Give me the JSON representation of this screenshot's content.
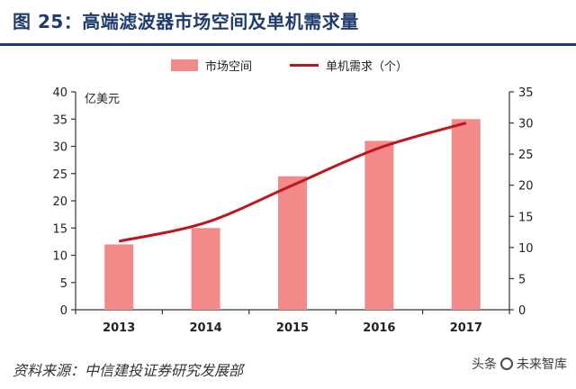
{
  "header": {
    "title": "图 25：高端滤波器市场空间及单机需求量"
  },
  "legend": {
    "bar_label": "市场空间",
    "line_label": "单机需求（个）"
  },
  "chart_data": {
    "type": "bar",
    "categories": [
      "2013",
      "2014",
      "2015",
      "2016",
      "2017"
    ],
    "series": [
      {
        "name": "市场空间",
        "type": "bar",
        "axis": "left",
        "values": [
          12,
          15,
          24.5,
          31,
          35
        ]
      },
      {
        "name": "单机需求（个）",
        "type": "line",
        "axis": "right",
        "values": [
          11,
          14,
          20,
          26,
          30
        ]
      }
    ],
    "ylabel": "亿美元",
    "ylim_left": [
      0,
      40
    ],
    "ylim_right": [
      0,
      35
    ],
    "yticks_left": [
      "0",
      "5",
      "10",
      "15",
      "20",
      "25",
      "30",
      "35",
      "40"
    ],
    "yticks_right": [
      "0",
      "5",
      "10",
      "15",
      "20",
      "25",
      "30",
      "35"
    ],
    "grid": false,
    "legend_position": "top-center",
    "colors": {
      "bar": "#f28a8a",
      "line": "#c0151c",
      "axis": "#333333"
    }
  },
  "footer": {
    "source": "资料来源：中信建投证券研究发展部",
    "watermark_left": "头条",
    "watermark_right": "未来智库"
  }
}
